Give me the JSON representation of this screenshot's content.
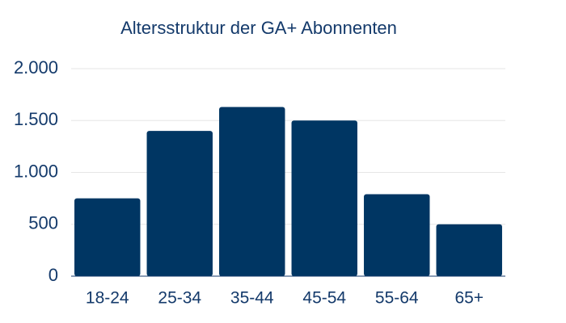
{
  "chart_data": {
    "type": "bar",
    "title": "Altersstruktur der GA+ Abonnenten",
    "categories": [
      "18-24",
      "25-34",
      "35-44",
      "45-54",
      "55-64",
      "65+"
    ],
    "values": [
      750,
      1400,
      1630,
      1500,
      790,
      500
    ],
    "color": "#003663",
    "ylim": [
      0,
      2000
    ],
    "yticks": [
      0,
      500,
      {
        "value": 1000,
        "label": "1.000"
      },
      {
        "value": 1500,
        "label": "1.500"
      },
      {
        "value": 2000,
        "label": "2.000"
      }
    ],
    "grid": true
  }
}
